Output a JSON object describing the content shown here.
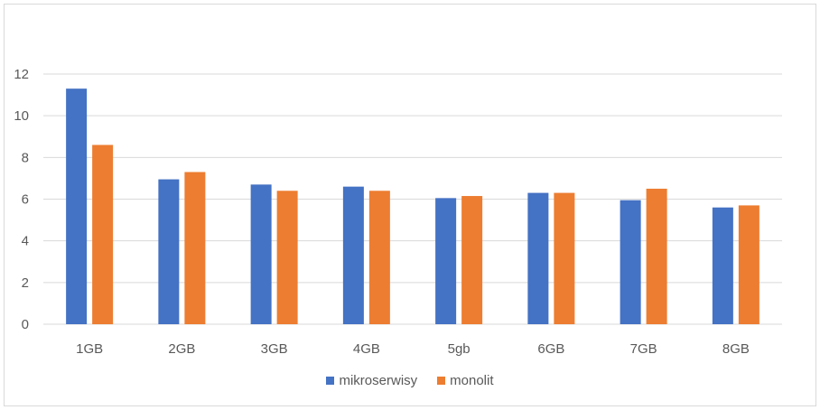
{
  "chart_data": {
    "type": "bar",
    "categories": [
      "1GB",
      "2GB",
      "3GB",
      "4GB",
      "5gb",
      "6GB",
      "7GB",
      "8GB"
    ],
    "series": [
      {
        "name": "mikroserwisy",
        "color": "#4472C4",
        "values": [
          11.3,
          6.95,
          6.7,
          6.6,
          6.05,
          6.3,
          5.95,
          5.6
        ]
      },
      {
        "name": "monolit",
        "color": "#ED7D31",
        "values": [
          8.6,
          7.3,
          6.4,
          6.4,
          6.15,
          6.3,
          6.5,
          5.7
        ]
      }
    ],
    "title": "",
    "xlabel": "",
    "ylabel": "",
    "ylim": [
      0,
      12
    ],
    "yticks": [
      0,
      2,
      4,
      6,
      8,
      10,
      12
    ],
    "grid": true,
    "legend_position": "bottom"
  }
}
